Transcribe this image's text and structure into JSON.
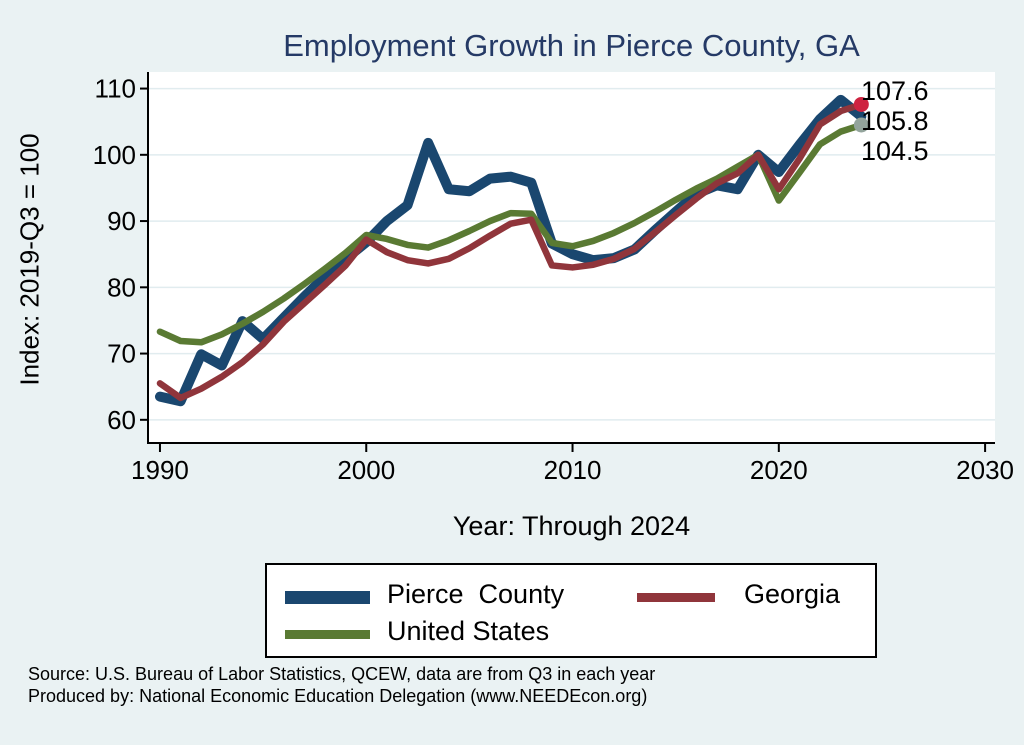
{
  "title": "Employment Growth in Pierce County, GA",
  "y_axis_title": "Index: 2019-Q3 = 100",
  "x_axis_title": "Year: Through 2024",
  "source_line1": "Source: U.S. Bureau of Labor Statistics, QCEW, data are from Q3 in each year",
  "source_line2": "Produced by: National Economic Education Delegation (www.NEEDEcon.org)",
  "colors": {
    "background": "#eaf2f3",
    "plot_background": "#ffffff",
    "gridline": "#e1ecef",
    "axis": "#000000",
    "title_text": "#253a66",
    "pierce_county": "#1a476f",
    "georgia": "#90353b",
    "united_states": "#5a7a33",
    "georgia_end_dot": "#ce2340",
    "united_states_end_dot": "#93a49c"
  },
  "chart_data": {
    "type": "line",
    "title": "Employment Growth in Pierce County, GA",
    "xlabel": "Year: Through 2024",
    "ylabel": "Index: 2019-Q3 = 100",
    "grid": "horizontal",
    "legend_position": "below",
    "xlim": [
      1989.42,
      2030.48
    ],
    "ylim": [
      56.5,
      112.5
    ],
    "xticks": [
      1990,
      2000,
      2010,
      2020,
      2030
    ],
    "yticks": [
      60,
      70,
      80,
      90,
      100,
      110
    ],
    "x": [
      1990,
      1991,
      1992,
      1993,
      1994,
      1995,
      1996,
      1997,
      1998,
      1999,
      2000,
      2001,
      2002,
      2003,
      2004,
      2005,
      2006,
      2007,
      2008,
      2009,
      2010,
      2011,
      2012,
      2013,
      2014,
      2015,
      2016,
      2017,
      2018,
      2019,
      2020,
      2021,
      2022,
      2023,
      2024
    ],
    "series": [
      {
        "name": "Pierce County",
        "legend_label": "Pierce  County",
        "color": "#1a476f",
        "line_width": 10,
        "z": 1,
        "end_dot_color": null,
        "end_label": "105.8",
        "values": [
          63.5,
          62.8,
          69.9,
          68.2,
          74.9,
          72.2,
          75.4,
          78.6,
          81.6,
          84.3,
          86.8,
          90.0,
          92.4,
          101.8,
          94.8,
          94.5,
          96.4,
          96.7,
          95.8,
          86.6,
          85.0,
          84.1,
          84.4,
          85.7,
          88.6,
          91.4,
          94.1,
          95.4,
          94.8,
          100.0,
          97.4,
          101.5,
          105.4,
          108.3,
          105.8
        ]
      },
      {
        "name": "Georgia",
        "legend_label": "Georgia",
        "color": "#90353b",
        "line_width": 6.5,
        "z": 3,
        "end_dot_color": "#ce2340",
        "end_label": "107.6",
        "values": [
          65.5,
          63.3,
          64.7,
          66.5,
          68.7,
          71.4,
          74.8,
          77.6,
          80.4,
          83.3,
          87.2,
          85.3,
          84.1,
          83.6,
          84.3,
          85.9,
          87.8,
          89.6,
          90.2,
          83.3,
          83.0,
          83.4,
          84.3,
          85.8,
          88.3,
          90.9,
          93.4,
          95.7,
          97.2,
          100.0,
          94.8,
          99.4,
          104.6,
          106.6,
          107.6
        ]
      },
      {
        "name": "United States",
        "legend_label": "United States",
        "color": "#5a7a33",
        "line_width": 6.5,
        "z": 2,
        "end_dot_color": "#93a49c",
        "end_label": "104.5",
        "values": [
          73.3,
          71.9,
          71.7,
          72.9,
          74.5,
          76.3,
          78.3,
          80.5,
          82.8,
          85.2,
          87.9,
          87.3,
          86.4,
          86.0,
          87.1,
          88.5,
          90.0,
          91.2,
          91.1,
          86.7,
          86.2,
          87.0,
          88.2,
          89.7,
          91.4,
          93.2,
          94.9,
          96.4,
          98.2,
          100.0,
          93.1,
          97.3,
          101.6,
          103.5,
          104.5
        ]
      }
    ]
  }
}
